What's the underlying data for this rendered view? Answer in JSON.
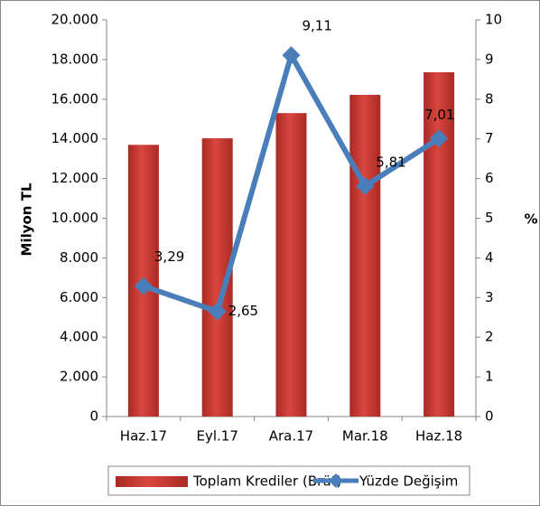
{
  "chart_data": {
    "type": "bar",
    "categories": [
      "Haz.17",
      "Eyl.17",
      "Ara.17",
      "Mar.18",
      "Haz.18"
    ],
    "ylabel": "Milyon TL",
    "y2label": "%",
    "series": [
      {
        "name": "Toplam Krediler (Brüt)",
        "color": "#c0392b",
        "values": [
          13700,
          14030,
          15300,
          16220,
          17360
        ]
      },
      {
        "name": "Yüzde Değişim",
        "color": "#4a7ebb",
        "axis": "y2",
        "type": "line",
        "values": [
          3.29,
          2.65,
          9.11,
          5.81,
          7.01
        ],
        "value_labels": [
          "3,29",
          "2,65",
          "9,11",
          "5,81",
          "7,01"
        ]
      }
    ],
    "ylim": [
      0,
      20000
    ],
    "yticks": [
      0,
      {
        "value": 2000,
        "label": "2.000"
      },
      {
        "value": 4000,
        "label": "4.000"
      },
      {
        "value": 6000,
        "label": "6.000"
      },
      {
        "value": 8000,
        "label": "8.000"
      },
      {
        "value": 10000,
        "label": "10.000"
      },
      {
        "value": 12000,
        "label": "12.000"
      },
      {
        "value": 14000,
        "label": "14.000"
      },
      {
        "value": 16000,
        "label": "16.000"
      },
      {
        "value": 18000,
        "label": "18.000"
      },
      {
        "value": 20000,
        "label": "20.000"
      }
    ],
    "y2lim": [
      0,
      10
    ],
    "y2ticks": [
      0,
      1,
      2,
      3,
      4,
      5,
      6,
      7,
      8,
      9,
      10
    ],
    "legend": "bottom"
  }
}
